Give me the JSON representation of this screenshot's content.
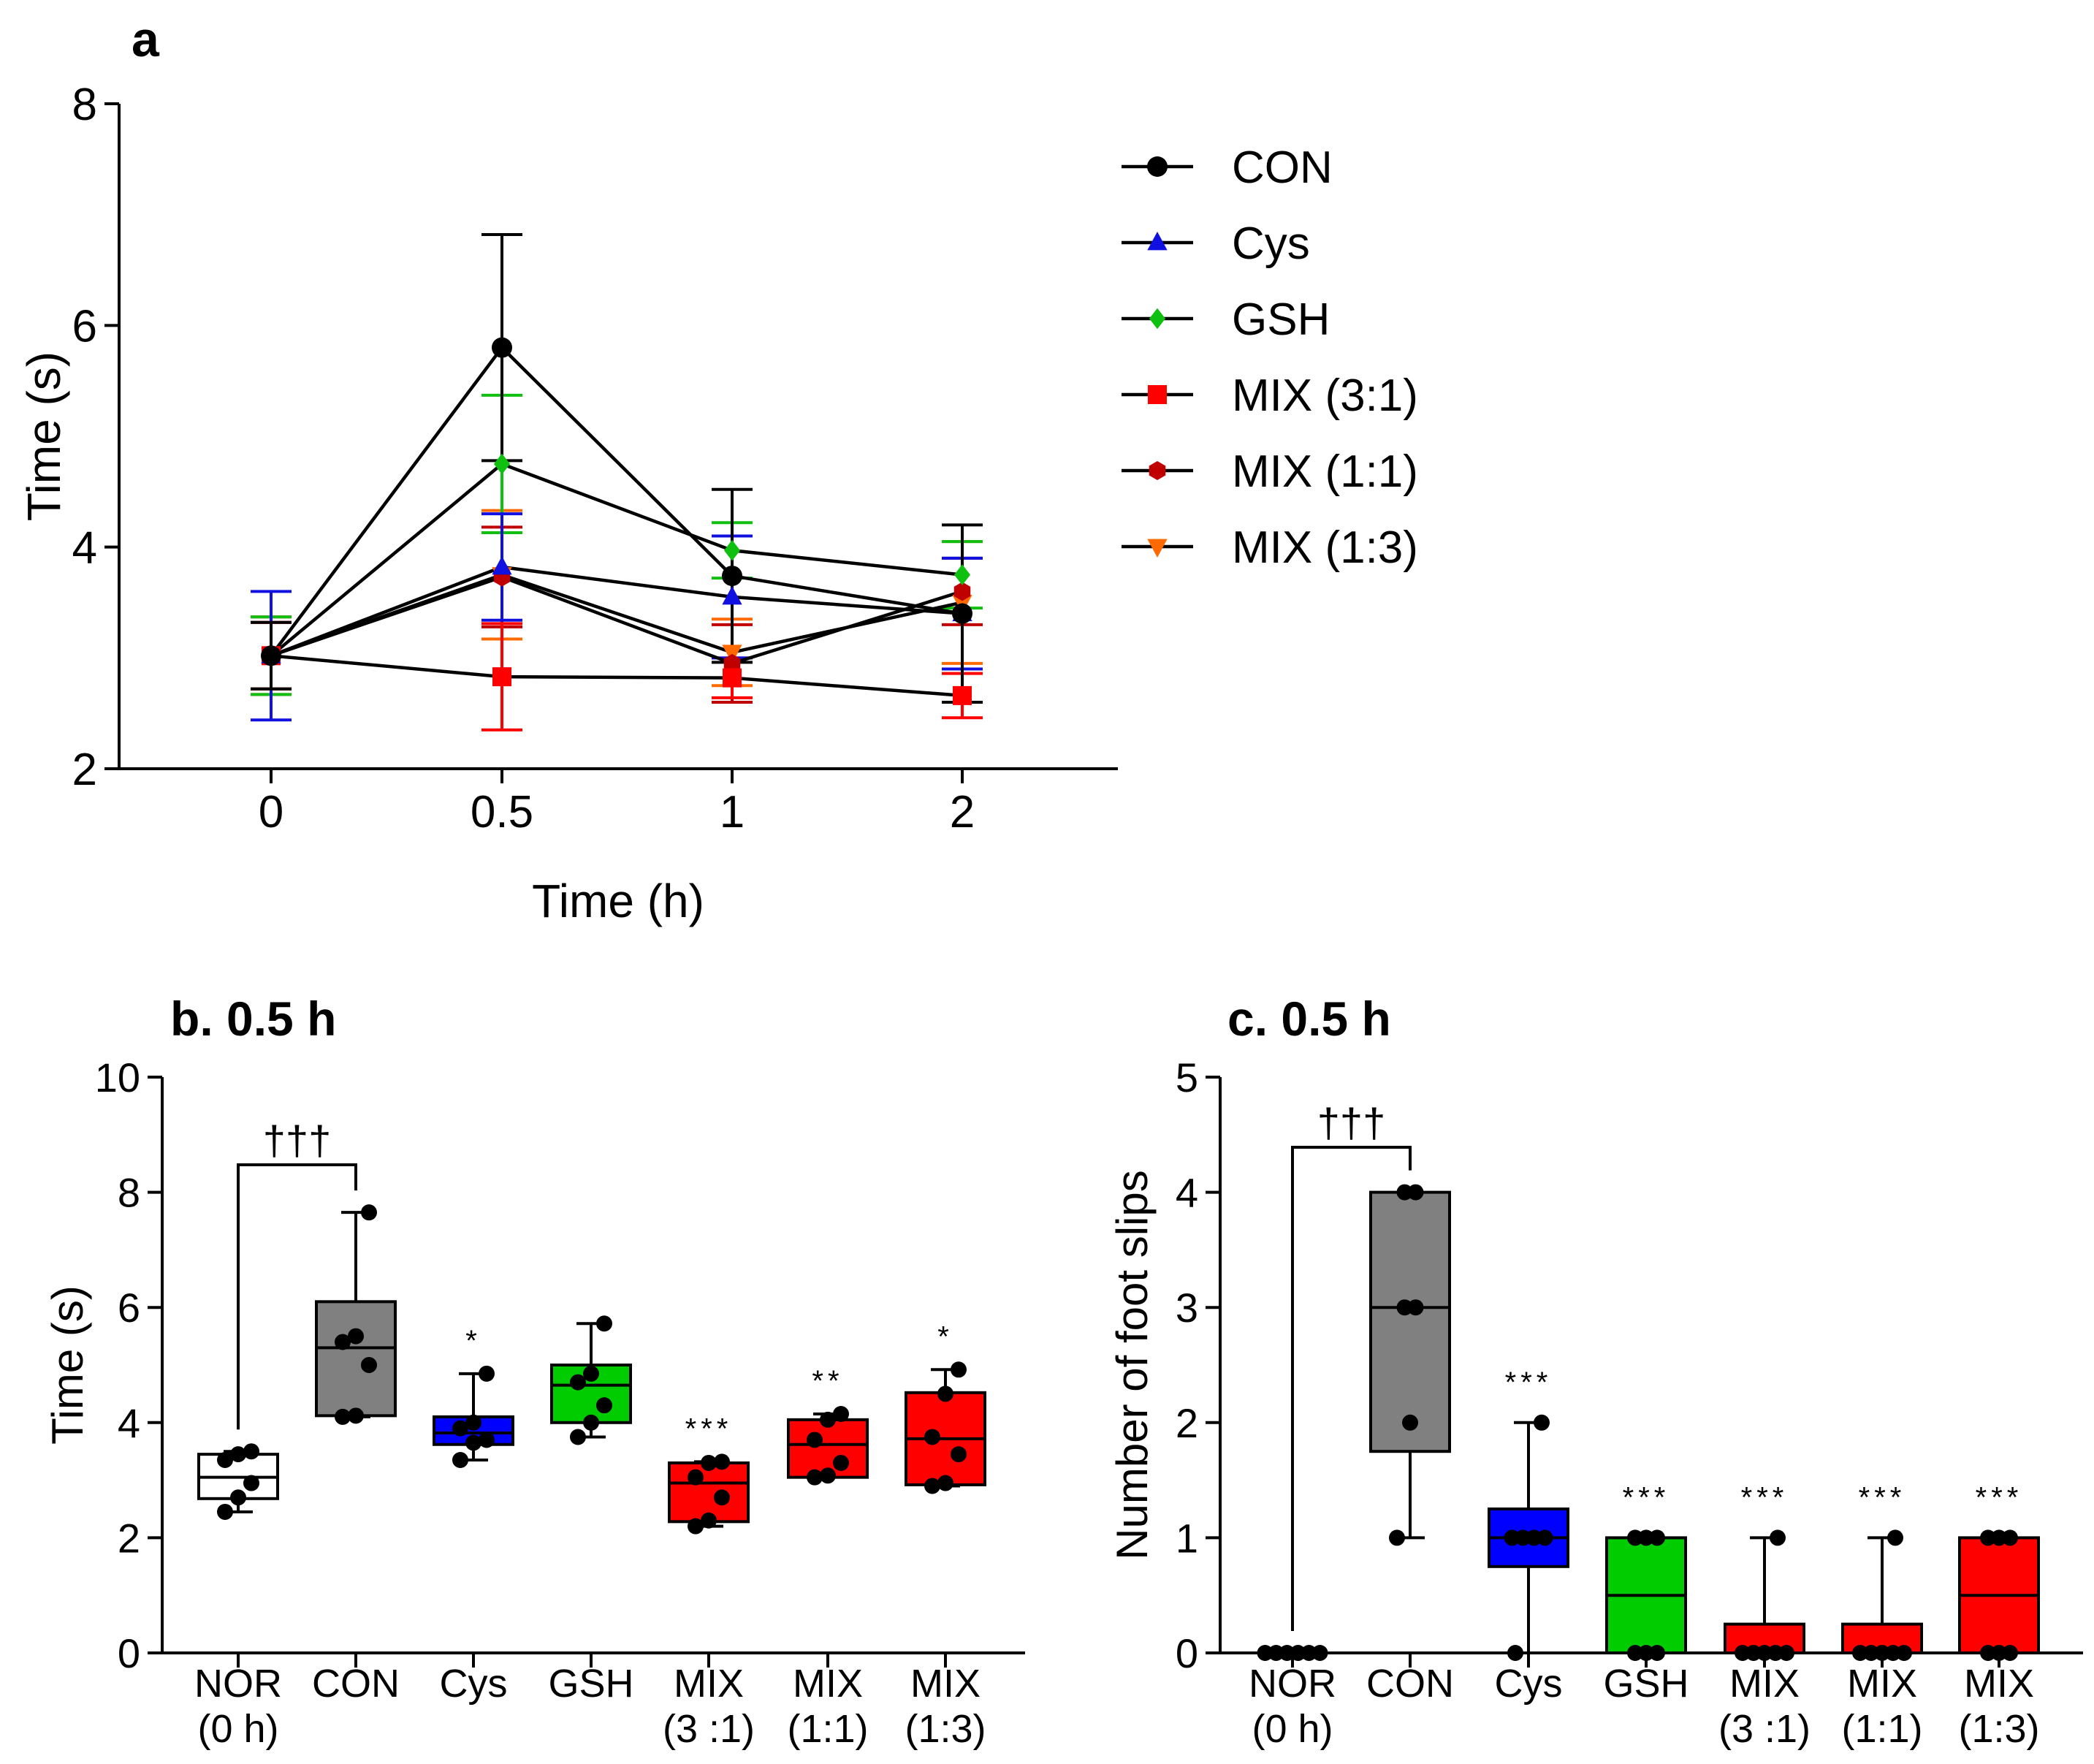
{
  "chart_data": [
    {
      "id": "a",
      "type": "line",
      "panel_label": "a",
      "title": "",
      "xlabel": "Time (h)",
      "ylabel": "Time (s)",
      "ylim": [
        2,
        8
      ],
      "yticks": [
        "2",
        "4",
        "6",
        "8"
      ],
      "categories": [
        "0",
        "0.5",
        "1",
        "2"
      ],
      "legend_position": "right",
      "series": [
        {
          "name": "CON",
          "marker": "circle",
          "color": "#000000",
          "values": [
            3.02,
            5.8,
            3.74,
            3.4
          ],
          "errors": [
            0.3,
            1.02,
            0.78,
            0.8
          ]
        },
        {
          "name": "Cys",
          "marker": "triangle-up",
          "color": "#1010e0",
          "values": [
            3.02,
            3.82,
            3.55,
            3.4
          ],
          "errors": [
            0.58,
            0.48,
            0.55,
            0.5
          ]
        },
        {
          "name": "GSH",
          "marker": "diamond",
          "color": "#10c010",
          "values": [
            3.02,
            4.75,
            3.97,
            3.75
          ],
          "errors": [
            0.35,
            0.62,
            0.25,
            0.3
          ]
        },
        {
          "name": "MIX (3:1)",
          "marker": "square",
          "color": "#ff0000",
          "values": [
            3.02,
            2.83,
            2.82,
            2.66
          ],
          "errors": [
            0.35,
            0.48,
            0.18,
            0.2
          ]
        },
        {
          "name": "MIX (1:1)",
          "marker": "hexagon",
          "color": "#c00000",
          "values": [
            3.02,
            3.73,
            2.95,
            3.6
          ],
          "errors": [
            0.3,
            0.45,
            0.35,
            0.3
          ]
        },
        {
          "name": "MIX (1:3)",
          "marker": "triangle-down",
          "color": "#ff6a00",
          "values": [
            3.02,
            3.75,
            3.05,
            3.5
          ],
          "errors": [
            0.3,
            0.58,
            0.3,
            0.55
          ]
        }
      ]
    },
    {
      "id": "b",
      "type": "box",
      "title": "b. 0.5 h",
      "xlabel": "",
      "ylabel": "Time (s)",
      "ylim": [
        0,
        10
      ],
      "yticks": [
        "0",
        "2",
        "4",
        "6",
        "8",
        "10"
      ],
      "categories": [
        {
          "line1": "NOR",
          "line2": "(0 h)"
        },
        {
          "line1": "CON",
          "line2": ""
        },
        {
          "line1": "Cys",
          "line2": ""
        },
        {
          "line1": "GSH",
          "line2": ""
        },
        {
          "line1": "MIX",
          "line2": "(3 :1)"
        },
        {
          "line1": "MIX",
          "line2": "(1:1)"
        },
        {
          "line1": "MIX",
          "line2": "(1:3)"
        }
      ],
      "boxes": [
        {
          "min": 2.45,
          "q1": 2.68,
          "median": 3.05,
          "q3": 3.45,
          "max": 3.5,
          "color": "#ffffff",
          "points": [
            2.45,
            2.7,
            2.95,
            3.35,
            3.45,
            3.5
          ],
          "sig": ""
        },
        {
          "min": 4.1,
          "q1": 4.12,
          "median": 5.3,
          "q3": 6.1,
          "max": 7.65,
          "color": "#808080",
          "points": [
            4.1,
            4.12,
            5.0,
            5.4,
            5.5,
            7.65
          ],
          "sig": ""
        },
        {
          "min": 3.35,
          "q1": 3.62,
          "median": 3.82,
          "q3": 4.1,
          "max": 4.85,
          "color": "#0000ff",
          "points": [
            3.35,
            3.65,
            3.7,
            3.9,
            4.0,
            4.85
          ],
          "sig": "*"
        },
        {
          "min": 3.75,
          "q1": 4.0,
          "median": 4.65,
          "q3": 5.0,
          "max": 5.72,
          "color": "#00cc00",
          "points": [
            3.75,
            4.0,
            4.3,
            4.7,
            4.85,
            5.72
          ],
          "sig": ""
        },
        {
          "min": 2.2,
          "q1": 2.28,
          "median": 2.95,
          "q3": 3.3,
          "max": 3.32,
          "color": "#ff0000",
          "points": [
            2.2,
            2.3,
            2.7,
            3.05,
            3.3,
            3.32
          ],
          "sig": "***"
        },
        {
          "min": 3.05,
          "q1": 3.05,
          "median": 3.62,
          "q3": 4.05,
          "max": 4.15,
          "color": "#ff0000",
          "points": [
            3.05,
            3.08,
            3.3,
            3.7,
            4.05,
            4.15
          ],
          "sig": "**"
        },
        {
          "min": 2.9,
          "q1": 2.92,
          "median": 3.72,
          "q3": 4.52,
          "max": 4.92,
          "color": "#ff0000",
          "points": [
            2.9,
            2.95,
            3.45,
            3.75,
            4.5,
            4.92
          ],
          "sig": "*"
        }
      ],
      "bracket": {
        "from": 0,
        "to": 1,
        "label": "†††"
      }
    },
    {
      "id": "c",
      "type": "box",
      "title": "c. 0.5 h",
      "xlabel": "",
      "ylabel": "Number of foot slips",
      "ylim": [
        0,
        5
      ],
      "yticks": [
        "0",
        "1",
        "2",
        "3",
        "4",
        "5"
      ],
      "categories": [
        {
          "line1": "NOR",
          "line2": "(0 h)"
        },
        {
          "line1": "CON",
          "line2": ""
        },
        {
          "line1": "Cys",
          "line2": ""
        },
        {
          "line1": "GSH",
          "line2": ""
        },
        {
          "line1": "MIX",
          "line2": "(3 :1)"
        },
        {
          "line1": "MIX",
          "line2": "(1:1)"
        },
        {
          "line1": "MIX",
          "line2": "(1:3)"
        }
      ],
      "boxes": [
        {
          "min": 0,
          "q1": 0,
          "median": 0,
          "q3": 0,
          "max": 0,
          "color": "#ffffff",
          "points": [
            0,
            0,
            0,
            0,
            0,
            0
          ],
          "sig": ""
        },
        {
          "min": 1,
          "q1": 1.75,
          "median": 3,
          "q3": 4,
          "max": 4,
          "color": "#808080",
          "points": [
            1,
            2,
            3,
            3,
            4,
            4
          ],
          "sig": ""
        },
        {
          "min": 0,
          "q1": 0.75,
          "median": 1,
          "q3": 1.25,
          "max": 2,
          "color": "#0000ff",
          "points": [
            0,
            1,
            1,
            1,
            1,
            2
          ],
          "sig": "***"
        },
        {
          "min": 0,
          "q1": 0,
          "median": 0.5,
          "q3": 1,
          "max": 1,
          "color": "#00cc00",
          "points": [
            0,
            0,
            0,
            1,
            1,
            1
          ],
          "sig": "***"
        },
        {
          "min": 0,
          "q1": 0,
          "median": 0,
          "q3": 0.25,
          "max": 1,
          "color": "#ff0000",
          "points": [
            0,
            0,
            0,
            0,
            0,
            1
          ],
          "sig": "***"
        },
        {
          "min": 0,
          "q1": 0,
          "median": 0,
          "q3": 0.25,
          "max": 1,
          "color": "#ff0000",
          "points": [
            0,
            0,
            0,
            0,
            0,
            1
          ],
          "sig": "***"
        },
        {
          "min": 0,
          "q1": 0,
          "median": 0.5,
          "q3": 1,
          "max": 1,
          "color": "#ff0000",
          "points": [
            0,
            0,
            0,
            1,
            1,
            1
          ],
          "sig": "***"
        }
      ],
      "bracket": {
        "from": 0,
        "to": 1,
        "label": "†††"
      }
    }
  ]
}
